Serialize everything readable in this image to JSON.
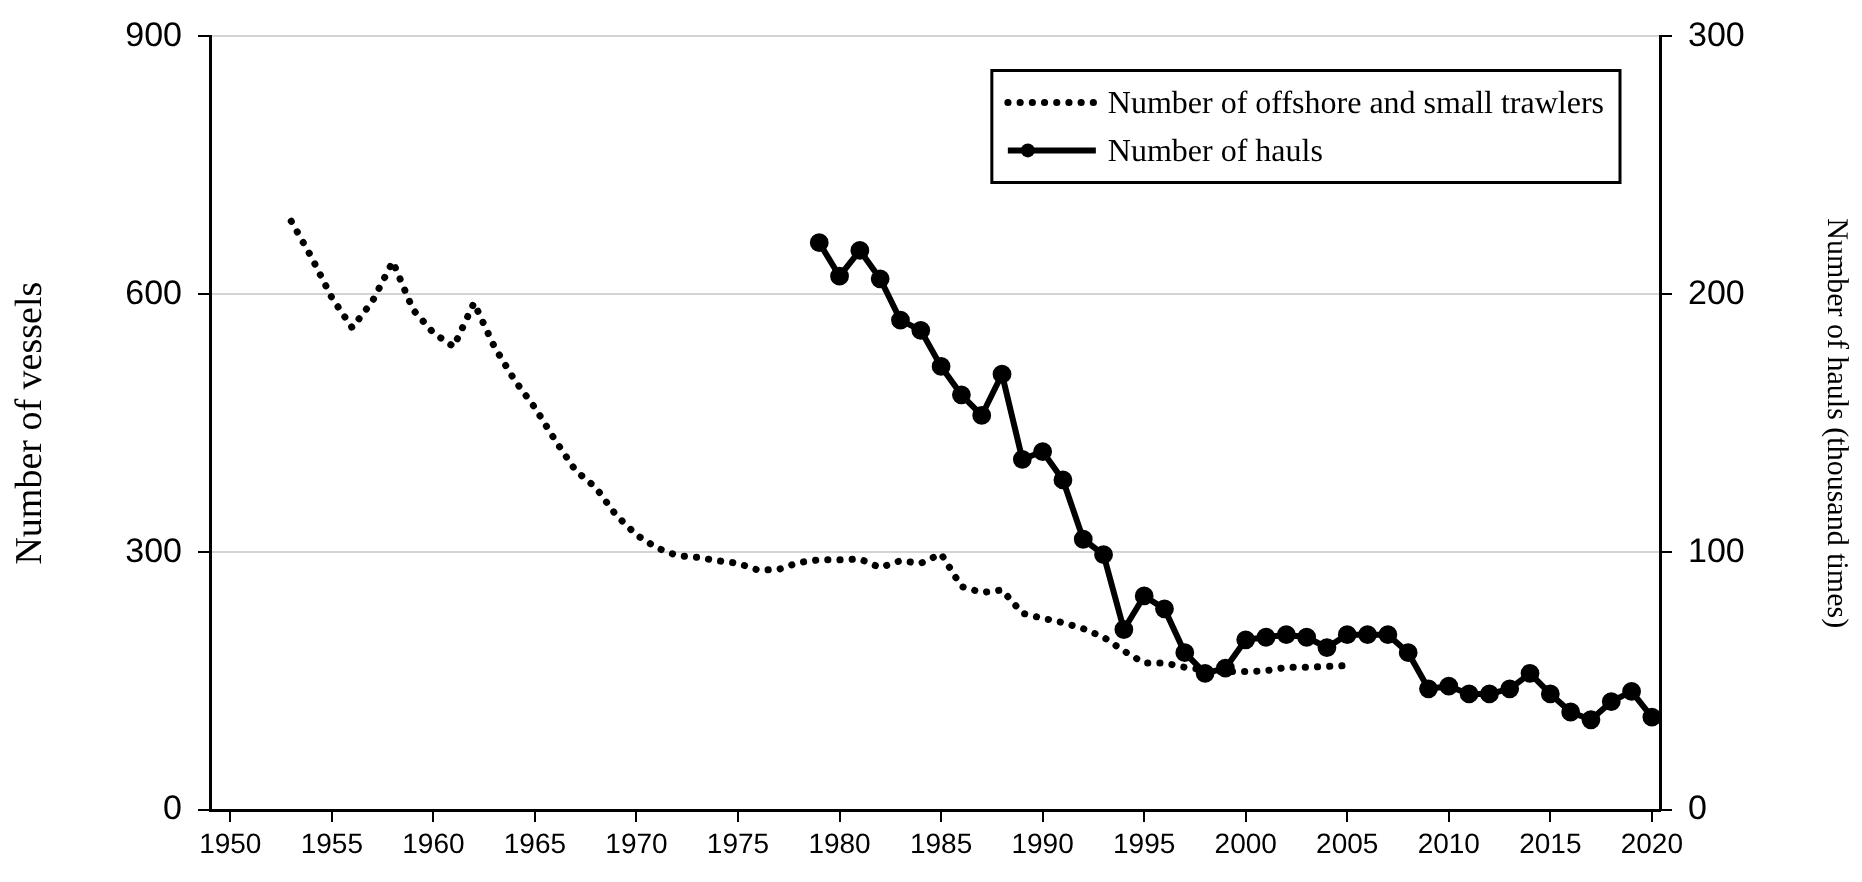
{
  "chart_data": {
    "type": "line",
    "ylabel": "Number of vessels",
    "y2label": "Number of hauls (thousand times)",
    "xlim": [
      1949,
      2020.4
    ],
    "xticks": [
      1950,
      1955,
      1960,
      1965,
      1970,
      1975,
      1980,
      1985,
      1990,
      1995,
      2000,
      2005,
      2010,
      2015,
      2020
    ],
    "ylim": [
      0,
      900
    ],
    "yticks": [
      0,
      300,
      600,
      900
    ],
    "y2lim": [
      0,
      300
    ],
    "y2ticks": [
      0,
      100,
      200,
      300
    ],
    "grid": "y",
    "legend": "top right",
    "series": [
      {
        "name": "Number of offshore and small trawlers",
        "color": "#000000",
        "axis": "y",
        "marker": "none",
        "line_style": "dotted",
        "x": [
          1953,
          1954,
          1955,
          1956,
          1957,
          1958,
          1959,
          1960,
          1961,
          1962,
          1963,
          1964,
          1965,
          1966,
          1967,
          1968,
          1969,
          1970,
          1971,
          1972,
          1973,
          1974,
          1975,
          1976,
          1977,
          1978,
          1979,
          1980,
          1981,
          1982,
          1983,
          1984,
          1985,
          1986,
          1987,
          1988,
          1989,
          1990,
          1991,
          1992,
          1993,
          1994,
          1995,
          1996,
          1997,
          1998,
          1999,
          2000,
          2001,
          2002,
          2003,
          2004,
          2005
        ],
        "values": [
          685,
          643,
          596,
          561,
          592,
          638,
          582,
          555,
          539,
          590,
          539,
          500,
          468,
          430,
          395,
          375,
          343,
          320,
          305,
          296,
          294,
          290,
          287,
          279,
          280,
          288,
          291,
          291,
          292,
          282,
          290,
          287,
          298,
          260,
          253,
          256,
          229,
          223,
          218,
          211,
          201,
          185,
          171,
          171,
          166,
          163,
          161,
          161,
          162,
          166,
          166,
          167,
          168
        ]
      },
      {
        "name": "Number of hauls",
        "color": "#000000",
        "axis": "y2",
        "marker": "circle",
        "line_style": "solid",
        "x": [
          1979,
          1980,
          1981,
          1982,
          1983,
          1984,
          1985,
          1986,
          1987,
          1988,
          1989,
          1990,
          1991,
          1992,
          1993,
          1994,
          1995,
          1996,
          1997,
          1998,
          1999,
          2000,
          2001,
          2002,
          2003,
          2004,
          2005,
          2006,
          2007,
          2008,
          2009,
          2010,
          2011,
          2012,
          2013,
          2014,
          2015,
          2016,
          2017,
          2018,
          2019,
          2020
        ],
        "values": [
          220,
          207,
          217,
          206,
          190,
          186,
          172,
          161,
          153,
          169,
          136,
          139,
          128,
          105,
          99,
          70,
          83,
          78,
          61,
          53,
          55,
          66,
          67,
          68,
          67,
          63,
          68,
          68,
          68,
          61,
          47,
          48,
          45,
          45,
          47,
          53,
          45,
          38,
          35,
          42,
          46,
          36
        ]
      }
    ]
  }
}
